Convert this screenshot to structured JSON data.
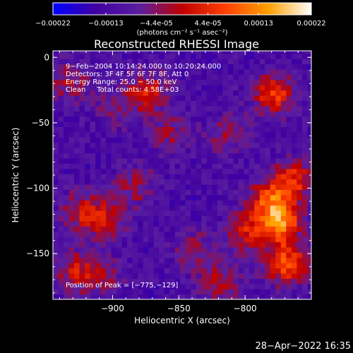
{
  "chart_data": {
    "type": "heatmap",
    "title": "Reconstructed RHESSI Image",
    "xlabel": "Heliocentric X (arcsec)",
    "ylabel": "Heliocentric Y (arcsec)",
    "xlim": [
      -945,
      -750
    ],
    "ylim": [
      -185,
      5
    ],
    "x_ticks": [
      -900,
      -850,
      -800
    ],
    "x_tick_labels": [
      "−900",
      "−850",
      "−800"
    ],
    "y_ticks": [
      0,
      -50,
      -100,
      -150
    ],
    "y_tick_labels": [
      "0",
      "−50",
      "−100",
      "−150"
    ],
    "colorbar": {
      "ticks": [
        -0.00022,
        -0.00013,
        -4.4e-05,
        4.4e-05,
        0.00013,
        0.00022
      ],
      "tick_labels": [
        "−0.00022",
        "−0.00013",
        "−4.4e-05",
        "4.4e-05",
        "0.00013",
        "0.00022"
      ],
      "range": [
        -0.00022,
        0.00022
      ],
      "colors": [
        "#0000ff",
        "#4000a0",
        "#5a1ea0",
        "#c00000",
        "#ff4000",
        "#ffa000",
        "#ffffff"
      ],
      "unit_label": "(photons cm⁻² s⁻¹ asec⁻²)"
    },
    "annotations": [
      "9−Feb−2004 10:14:24.000 to 10:20:24.000",
      "Detectors: 3F 4F 5F 6F 7F 8F, Att 0",
      "Energy Range: 25.0 − 50.0 keV",
      "Clean     Total counts: 4.58E+03",
      "Position of Peak = [−775,−129]"
    ],
    "peak_position": [
      -775,
      -129
    ],
    "sources": [
      {
        "x": -775,
        "y": -129,
        "amp": 0.00022
      },
      {
        "x": -783,
        "y": -110,
        "amp": 0.00018
      },
      {
        "x": -770,
        "y": -160,
        "amp": 0.00019
      },
      {
        "x": -765,
        "y": -95,
        "amp": 0.00015
      },
      {
        "x": -800,
        "y": -135,
        "amp": 0.00013
      },
      {
        "x": -780,
        "y": -30,
        "amp": 0.00017
      },
      {
        "x": -875,
        "y": -28,
        "amp": 0.00014
      },
      {
        "x": -925,
        "y": -120,
        "amp": 0.00012
      },
      {
        "x": -905,
        "y": -125,
        "amp": 0.00011
      },
      {
        "x": -930,
        "y": -165,
        "amp": 0.00012
      },
      {
        "x": -885,
        "y": -100,
        "amp": 9e-05
      },
      {
        "x": -935,
        "y": -20,
        "amp": 0.0001
      },
      {
        "x": -840,
        "y": -150,
        "amp": 9e-05
      },
      {
        "x": -860,
        "y": -60,
        "amp": 8e-05
      },
      {
        "x": -815,
        "y": -60,
        "amp": 8e-05
      },
      {
        "x": -900,
        "y": -40,
        "amp": 7e-05
      },
      {
        "x": -820,
        "y": -175,
        "amp": 0.0001
      },
      {
        "x": -910,
        "y": -170,
        "amp": 8e-05
      }
    ],
    "pixel_size_arcsec": 4
  },
  "timestamp": "28−Apr−2022 16:35"
}
